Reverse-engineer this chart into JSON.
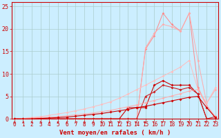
{
  "xlabel": "Vent moyen/en rafales ( km/h )",
  "bg_color": "#cceeff",
  "grid_color": "#aacccc",
  "x": [
    0,
    1,
    2,
    3,
    4,
    5,
    6,
    7,
    8,
    9,
    10,
    11,
    12,
    13,
    14,
    15,
    16,
    17,
    18,
    19,
    20,
    21,
    22,
    23
  ],
  "lines": [
    {
      "y": [
        0,
        0,
        0,
        0,
        0,
        0,
        0,
        0,
        0,
        0,
        0,
        0,
        0,
        0,
        0,
        15.5,
        18.5,
        23.5,
        21.0,
        19.5,
        23.5,
        7.0,
        3.0,
        0
      ],
      "color": "#ff8888",
      "lw": 0.7,
      "ms": 1.8
    },
    {
      "y": [
        0,
        0,
        0,
        0,
        0,
        0,
        0,
        0,
        0,
        0,
        0,
        0,
        0,
        0,
        0,
        15.8,
        19.0,
        21.0,
        20.5,
        19.5,
        23.5,
        13.0,
        3.5,
        6.5
      ],
      "color": "#ffaaaa",
      "lw": 0.7,
      "ms": 1.8
    },
    {
      "y": [
        0,
        0.1,
        0.3,
        0.5,
        0.8,
        1.1,
        1.4,
        1.8,
        2.2,
        2.7,
        3.2,
        3.8,
        4.6,
        5.5,
        6.5,
        7.5,
        8.5,
        9.5,
        10.5,
        11.5,
        13.0,
        6.5,
        3.5,
        7.0
      ],
      "color": "#ffbbbb",
      "lw": 0.7,
      "ms": 1.8
    },
    {
      "y": [
        0,
        0,
        0,
        0,
        0,
        0,
        0,
        0,
        0,
        0,
        0,
        0,
        0,
        2.5,
        2.5,
        2.5,
        7.5,
        8.5,
        7.5,
        7.5,
        7.5,
        5.5,
        0,
        0
      ],
      "color": "#cc0000",
      "lw": 0.8,
      "ms": 2.0
    },
    {
      "y": [
        0,
        0,
        0,
        0,
        0,
        0,
        0,
        0,
        0,
        0,
        0,
        0,
        0,
        0,
        0,
        5.0,
        6.0,
        7.5,
        7.0,
        6.5,
        7.0,
        5.5,
        0,
        0.5
      ],
      "color": "#cc2222",
      "lw": 0.8,
      "ms": 2.0
    },
    {
      "y": [
        0,
        0.1,
        0.2,
        0.3,
        0.4,
        0.5,
        0.7,
        0.9,
        1.1,
        1.3,
        1.6,
        1.9,
        2.3,
        2.7,
        3.1,
        3.6,
        4.1,
        4.6,
        5.1,
        5.6,
        6.2,
        6.5,
        3.0,
        0.5
      ],
      "color": "#ffaaaa",
      "lw": 0.7,
      "ms": 1.8
    },
    {
      "y": [
        0,
        0,
        0,
        0.1,
        0.2,
        0.3,
        0.4,
        0.6,
        0.8,
        1.0,
        1.2,
        1.5,
        1.8,
        2.1,
        2.5,
        2.8,
        3.2,
        3.6,
        4.0,
        4.4,
        4.8,
        5.0,
        2.5,
        0.3
      ],
      "color": "#cc0000",
      "lw": 0.8,
      "ms": 2.0
    }
  ],
  "yticks": [
    0,
    5,
    10,
    15,
    20,
    25
  ],
  "xticks": [
    0,
    1,
    2,
    3,
    4,
    5,
    6,
    7,
    8,
    9,
    10,
    11,
    12,
    13,
    14,
    15,
    16,
    17,
    18,
    19,
    20,
    21,
    22,
    23
  ],
  "xlim": [
    -0.3,
    23.3
  ],
  "ylim": [
    0,
    26
  ],
  "tick_color": "#cc0000",
  "label_color": "#cc0000",
  "spine_color": "#cc0000",
  "xlabel_fontsize": 6.5,
  "tick_fontsize": 5.5,
  "ytick_fontsize": 6.0
}
